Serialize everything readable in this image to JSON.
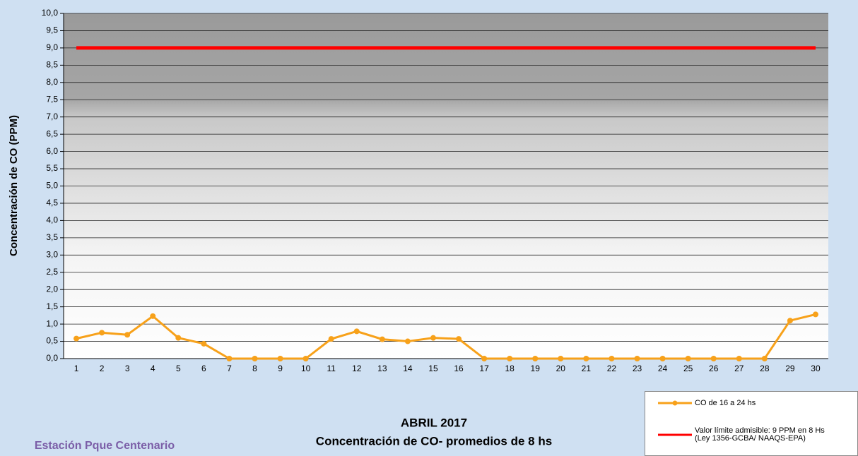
{
  "chart_data": {
    "type": "line",
    "title": "ABRIL 2017",
    "subtitle": "Concentración de CO- promedios de 8 hs",
    "y_label": "Concentración de CO (PPM)",
    "annotation": "Estación Pque Centenario",
    "categories": [
      "1",
      "2",
      "3",
      "4",
      "5",
      "6",
      "7",
      "8",
      "9",
      "10",
      "11",
      "12",
      "13",
      "14",
      "15",
      "16",
      "17",
      "18",
      "19",
      "20",
      "21",
      "22",
      "23",
      "24",
      "25",
      "26",
      "27",
      "28",
      "29",
      "30"
    ],
    "series": [
      {
        "name": "CO de 16 a 24 hs",
        "color": "#f7a11a",
        "markers": true,
        "values": [
          0.58,
          0.75,
          0.69,
          1.23,
          0.6,
          0.43,
          0,
          0,
          0,
          0,
          0.57,
          0.79,
          0.56,
          0.5,
          0.6,
          0.57,
          0,
          0,
          0,
          0,
          0,
          0,
          0,
          0,
          0,
          0,
          0,
          0,
          1.1,
          1.28
        ]
      },
      {
        "name": "Valor límite admisible: 9 PPM en 8 Hs\n(Ley 1356-GCBA/ NAAQS-EPA)",
        "color": "#ff0000",
        "markers": false,
        "values": [
          9,
          9,
          9,
          9,
          9,
          9,
          9,
          9,
          9,
          9,
          9,
          9,
          9,
          9,
          9,
          9,
          9,
          9,
          9,
          9,
          9,
          9,
          9,
          9,
          9,
          9,
          9,
          9,
          9,
          9
        ]
      }
    ],
    "ylim": [
      0,
      10
    ],
    "yticks": [
      {
        "value": 0,
        "label": "0,0"
      },
      {
        "value": 0.5,
        "label": "0,5"
      },
      {
        "value": 1,
        "label": "1,0"
      },
      {
        "value": 1.5,
        "label": "1,5"
      },
      {
        "value": 2,
        "label": "2,0"
      },
      {
        "value": 2.5,
        "label": "2,5"
      },
      {
        "value": 3,
        "label": "3,0"
      },
      {
        "value": 3.5,
        "label": "3,5"
      },
      {
        "value": 4,
        "label": "4,0"
      },
      {
        "value": 4.5,
        "label": "4,5"
      },
      {
        "value": 5,
        "label": "5,0"
      },
      {
        "value": 5.5,
        "label": "5,5"
      },
      {
        "value": 6,
        "label": "6,0"
      },
      {
        "value": 6.5,
        "label": "6,5"
      },
      {
        "value": 7,
        "label": "7,0"
      },
      {
        "value": 7.5,
        "label": "7,5"
      },
      {
        "value": 8,
        "label": "8,0"
      },
      {
        "value": 8.5,
        "label": "8,5"
      },
      {
        "value": 9,
        "label": "9,0"
      },
      {
        "value": 9.5,
        "label": "9,5"
      },
      {
        "value": 10,
        "label": "10,0"
      }
    ],
    "grid": true
  }
}
